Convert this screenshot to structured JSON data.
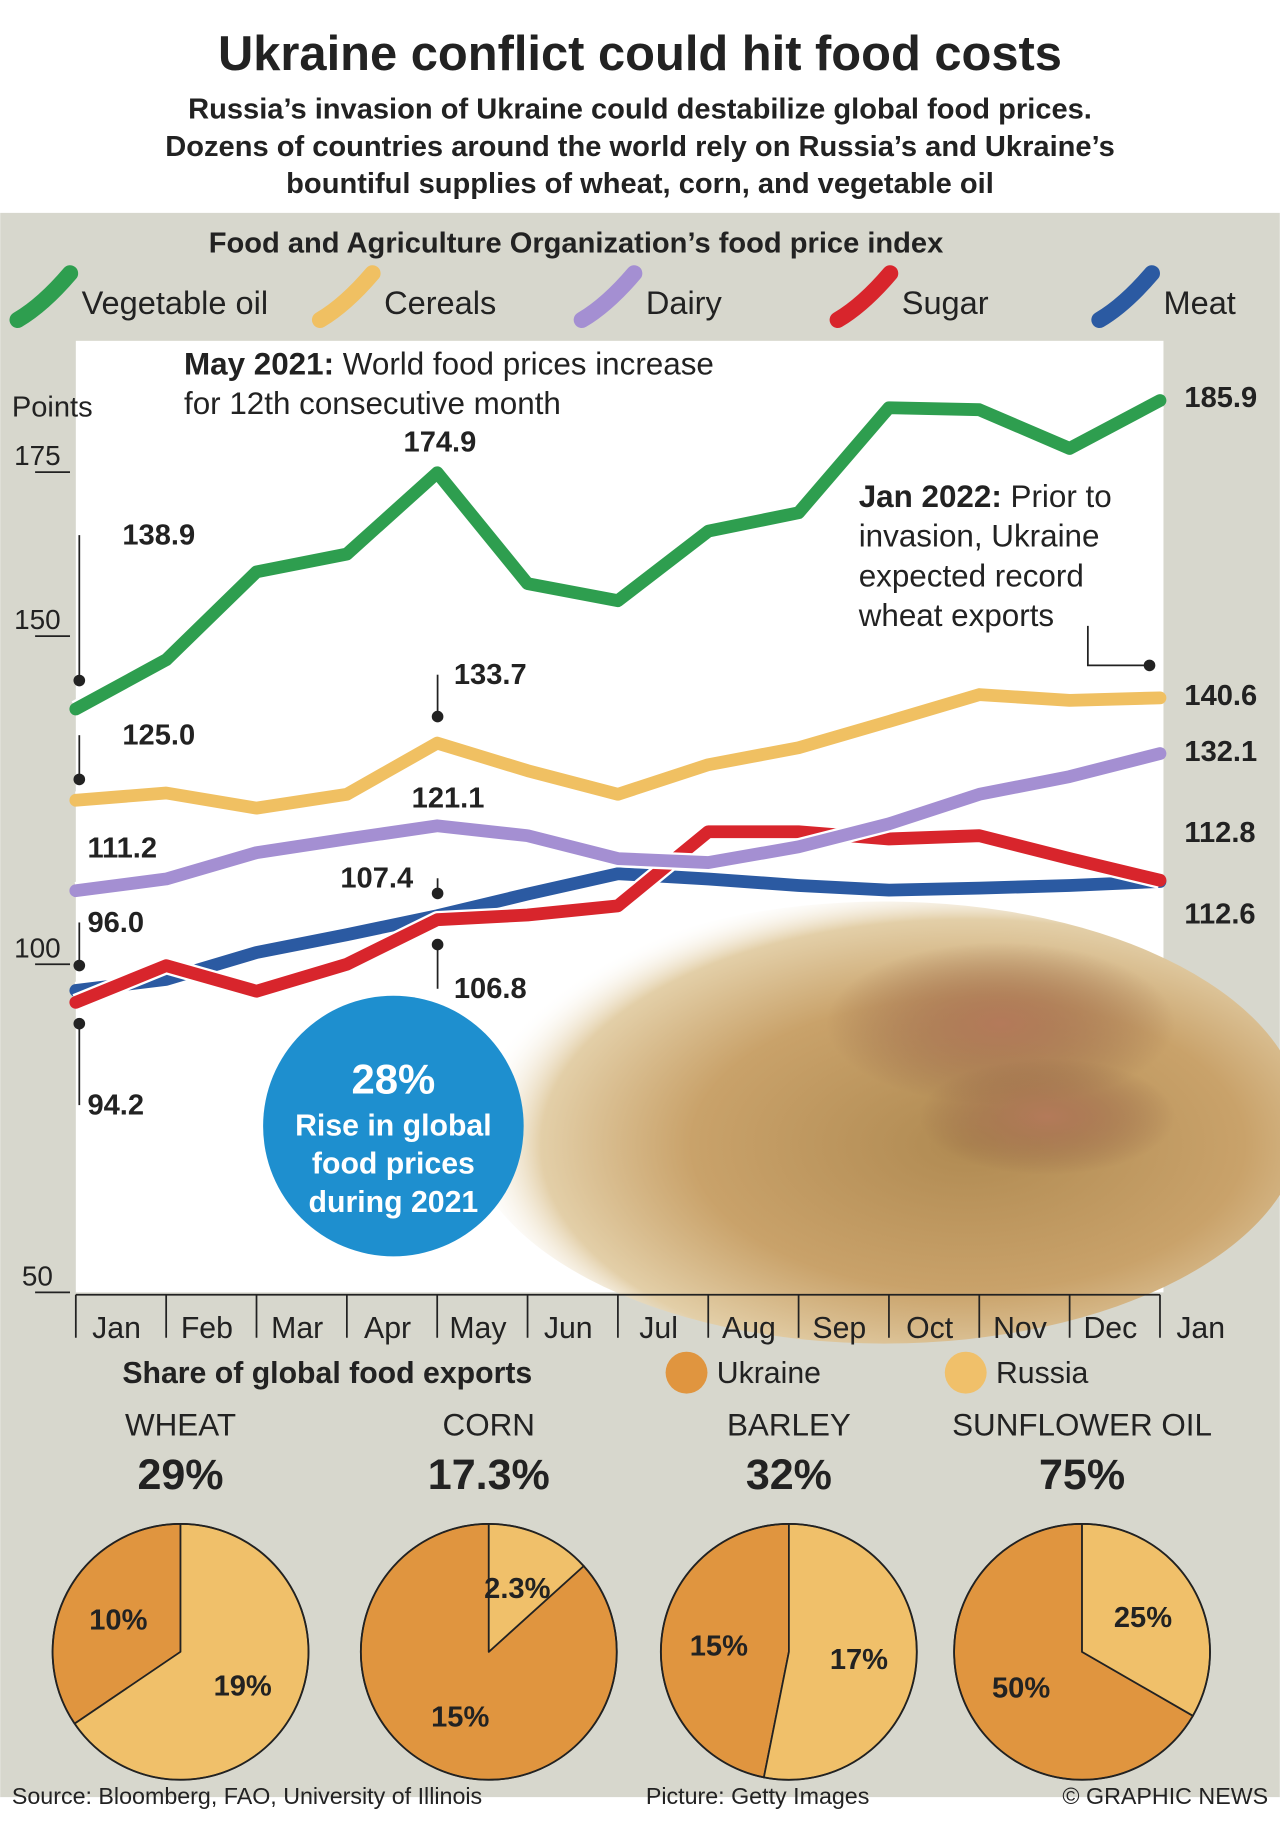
{
  "title": "Ukraine conflict could hit food costs",
  "subtitle_lines": [
    "Russia’s invasion of Ukraine could destabilize global food prices.",
    "Dozens of countries around the world rely on Russia’s and Ukraine’s",
    "bountiful supplies of wheat, corn, and vegetable oil"
  ],
  "exports_title": "Share of global food exports",
  "source": "Source: Bloomberg, FAO, University of Illinois",
  "picture_credit": "Picture: Getty Images",
  "copyright": "© GRAPHIC NEWS",
  "chart_data": [
    {
      "type": "line",
      "title": "Food and Agriculture Organization’s food price index",
      "y_label": "Points",
      "categories": [
        "Jan",
        "Feb",
        "Mar",
        "Apr",
        "May",
        "Jun",
        "Jul",
        "Aug",
        "Sep",
        "Oct",
        "Nov",
        "Dec",
        "Jan"
      ],
      "ylim": [
        50,
        195
      ],
      "yticks": [
        50,
        100,
        150,
        175
      ],
      "series": [
        {
          "name": "Vegetable oil",
          "color": "#2e9e4f",
          "values": [
            138.9,
            146.4,
            159.8,
            162.5,
            174.9,
            158.0,
            155.4,
            166.0,
            168.8,
            184.8,
            184.5,
            178.6,
            185.9
          ],
          "value_labels": [
            "138.9",
            null,
            null,
            null,
            "174.9",
            null,
            null,
            null,
            null,
            null,
            null,
            null,
            "185.9"
          ]
        },
        {
          "name": "Cereals",
          "color": "#f0c062",
          "values": [
            125.0,
            126.1,
            123.8,
            125.9,
            133.7,
            129.5,
            125.9,
            130.4,
            133.0,
            137.0,
            141.1,
            140.2,
            140.6
          ],
          "value_labels": [
            "125.0",
            null,
            null,
            null,
            "133.7",
            null,
            null,
            null,
            null,
            null,
            null,
            null,
            "140.6"
          ]
        },
        {
          "name": "Dairy",
          "color": "#a48fd2",
          "values": [
            111.2,
            113.0,
            117.0,
            119.1,
            121.1,
            119.6,
            116.1,
            115.5,
            117.9,
            121.4,
            125.9,
            128.6,
            132.1
          ],
          "value_labels": [
            "111.2",
            null,
            null,
            null,
            "121.1",
            null,
            null,
            null,
            null,
            null,
            null,
            null,
            "132.1"
          ]
        },
        {
          "name": "Sugar",
          "color": "#d8252c",
          "values": [
            94.2,
            99.8,
            95.9,
            100.0,
            106.8,
            107.5,
            108.9,
            120.2,
            120.2,
            119.1,
            119.6,
            116.1,
            112.8
          ],
          "value_labels": [
            "94.2",
            null,
            null,
            null,
            "106.8",
            null,
            null,
            null,
            null,
            null,
            null,
            null,
            "112.8"
          ]
        },
        {
          "name": "Meat",
          "color": "#2b5aa2",
          "values": [
            96.0,
            97.7,
            101.8,
            104.5,
            107.4,
            110.7,
            113.8,
            113.0,
            112.0,
            111.3,
            111.6,
            112.0,
            112.6
          ],
          "value_labels": [
            "96.0",
            null,
            null,
            null,
            "107.4",
            null,
            null,
            null,
            null,
            null,
            null,
            null,
            "112.6"
          ]
        }
      ],
      "annotations": [
        {
          "label": "May 2021:",
          "lines": [
            "World food prices increase",
            "for 12th consecutive month"
          ]
        },
        {
          "label": "Jan 2022:",
          "lines": [
            "Prior to",
            "invasion, Ukraine",
            "expected record",
            "wheat exports"
          ]
        }
      ],
      "callout": {
        "headline": "28%",
        "lines": [
          "Rise in global",
          "food prices",
          "during 2021"
        ]
      }
    },
    {
      "type": "pie",
      "title": "WHEAT",
      "subtitle": "29%",
      "categories": [
        "Ukraine",
        "Russia"
      ],
      "colors": [
        "#e0953f",
        "#f0c06a"
      ],
      "values": [
        10,
        19
      ],
      "value_labels": [
        "10%",
        "19%"
      ]
    },
    {
      "type": "pie",
      "title": "CORN",
      "subtitle": "17.3%",
      "categories": [
        "Ukraine",
        "Russia"
      ],
      "colors": [
        "#e0953f",
        "#f0c06a"
      ],
      "values": [
        15,
        2.3
      ],
      "value_labels": [
        "15%",
        "2.3%"
      ]
    },
    {
      "type": "pie",
      "title": "BARLEY",
      "subtitle": "32%",
      "categories": [
        "Ukraine",
        "Russia"
      ],
      "colors": [
        "#e0953f",
        "#f0c06a"
      ],
      "values": [
        15,
        17
      ],
      "value_labels": [
        "15%",
        "17%"
      ]
    },
    {
      "type": "pie",
      "title": "SUNFLOWER OIL",
      "subtitle": "75%",
      "categories": [
        "Ukraine",
        "Russia"
      ],
      "colors": [
        "#e0953f",
        "#f0c06a"
      ],
      "values": [
        50,
        25
      ],
      "value_labels": [
        "50%",
        "25%"
      ]
    }
  ]
}
